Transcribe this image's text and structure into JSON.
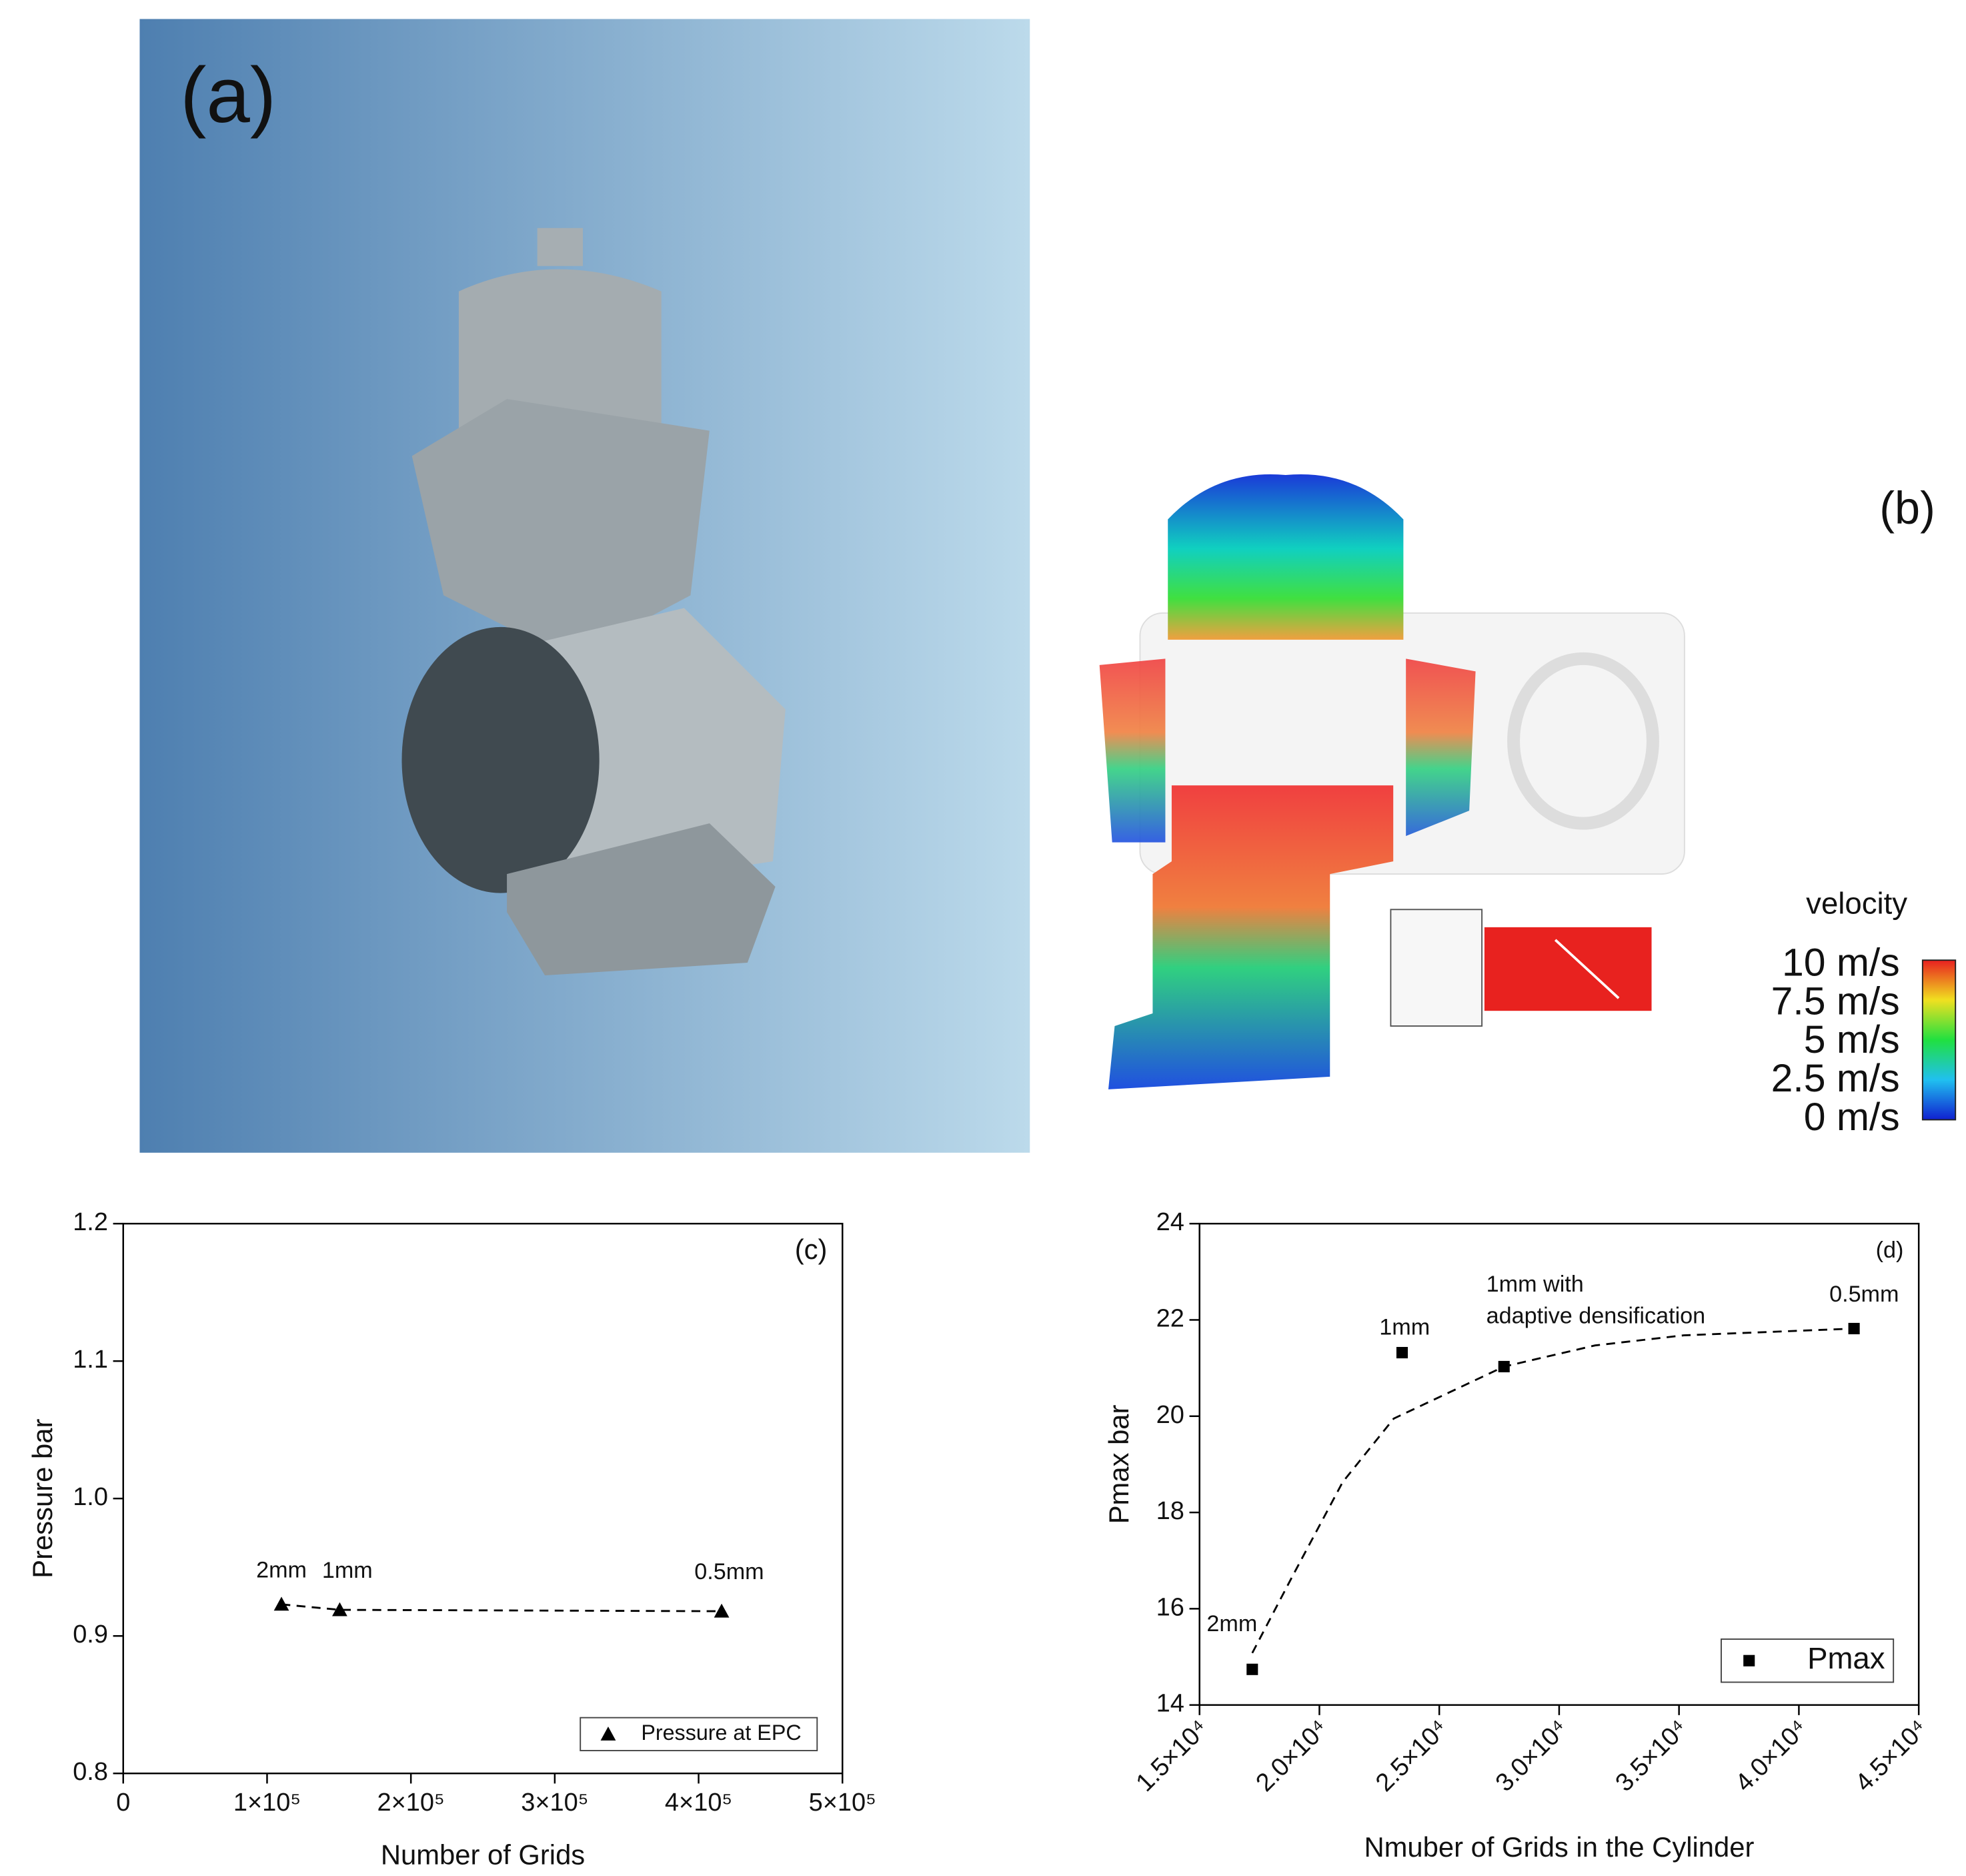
{
  "panels": {
    "a": {
      "label": "(a)"
    },
    "b": {
      "label": "(b)",
      "colorbar_title": "velocity",
      "colorbar_labels": [
        "10 m/s",
        "7.5 m/s",
        "5 m/s",
        "2.5 m/s",
        "0 m/s"
      ]
    }
  },
  "chart_data": [
    {
      "type": "scatter",
      "panel_label": "(c)",
      "xlabel": "Number of Grids",
      "ylabel": "Pressure bar",
      "xlim": [
        0,
        500000
      ],
      "xticks": [
        0,
        {
          "value": 100000,
          "label": "1×10⁵"
        },
        {
          "value": 200000,
          "label": "2×10⁵"
        },
        {
          "value": 300000,
          "label": "3×10⁵"
        },
        {
          "value": 400000,
          "label": "4×10⁵"
        },
        {
          "value": 500000,
          "label": "5×10⁵"
        }
      ],
      "ylim": [
        0.8,
        1.2
      ],
      "yticks": [
        0.8,
        0.9,
        {
          "value": 1,
          "label": "1.0"
        },
        1.1,
        1.2
      ],
      "series": [
        {
          "name": "Pressure at EPC",
          "color": "#000000",
          "marker": "triangle",
          "x": [
            110000,
            150500,
            416000
          ],
          "values": [
            0.923,
            0.919,
            0.918
          ]
        }
      ],
      "trend": {
        "style": "dashed",
        "x": [
          110000,
          150500,
          416000
        ],
        "values": [
          0.923,
          0.919,
          0.918
        ]
      },
      "annotations": [
        "2mm",
        "1mm",
        "0.5mm"
      ],
      "legend": "lower right",
      "xtick_rotation": 0
    },
    {
      "type": "scatter",
      "panel_label": "(d)",
      "xlabel": "Nmuber of Grids in the Cylinder",
      "ylabel": "Pmax bar",
      "xlim": [
        15000,
        45000
      ],
      "xticks": [
        {
          "value": 15000,
          "label": "1.5×10⁴"
        },
        {
          "value": 20000,
          "label": "2.0×10⁴"
        },
        {
          "value": 25000,
          "label": "2.5×10⁴"
        },
        {
          "value": 30000,
          "label": "3.0×10⁴"
        },
        {
          "value": 35000,
          "label": "3.5×10⁴"
        },
        {
          "value": 40000,
          "label": "4.0×10⁴"
        },
        {
          "value": 45000,
          "label": "4.5×10⁴"
        }
      ],
      "ylim": [
        14,
        24
      ],
      "yticks": [
        14,
        16,
        18,
        20,
        22,
        24
      ],
      "series": [
        {
          "name": "Pmax",
          "color": "#000000",
          "marker": "square",
          "x": [
            17200,
            23450,
            27700,
            42300
          ],
          "values": [
            14.74,
            21.32,
            21.03,
            21.82
          ]
        }
      ],
      "trend": {
        "style": "dashed",
        "x": [
          17200,
          18860,
          20970,
          23100,
          27700,
          31500,
          35200,
          42300
        ],
        "values": [
          15.08,
          16.66,
          18.63,
          19.95,
          21.03,
          21.47,
          21.68,
          21.82
        ]
      },
      "annotations": [
        "2mm",
        "1mm",
        [
          "1mm with",
          "adaptive densification"
        ],
        "0.5mm"
      ],
      "legend": "lower right",
      "xtick_rotation": -45
    }
  ]
}
